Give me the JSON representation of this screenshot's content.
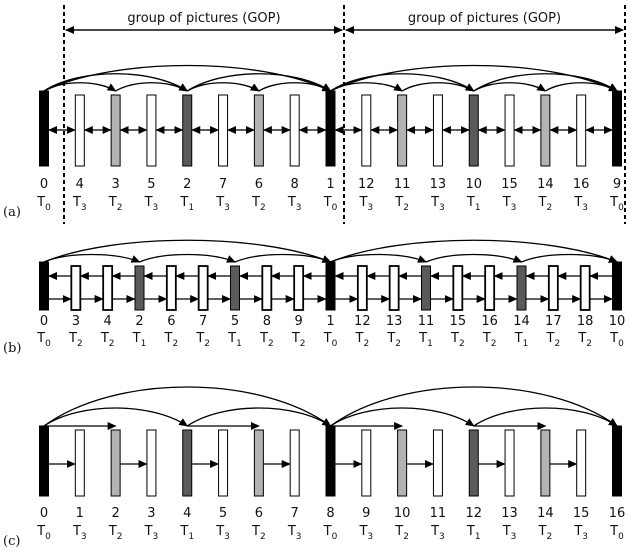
{
  "gop_label": "group of pictures (GOP)",
  "colors": {
    "key": "#000000",
    "T1": "#5a5a5a",
    "T2": "#b3b3b3",
    "T3": "#ffffff",
    "stroke": "#000000"
  },
  "panels": [
    {
      "label": "(a)",
      "show_gop": true,
      "frames": [
        {
          "num": "0",
          "level": "0",
          "kind": "key"
        },
        {
          "num": "4",
          "level": "3",
          "kind": "T3"
        },
        {
          "num": "3",
          "level": "2",
          "kind": "T2"
        },
        {
          "num": "5",
          "level": "3",
          "kind": "T3"
        },
        {
          "num": "2",
          "level": "1",
          "kind": "T1"
        },
        {
          "num": "7",
          "level": "3",
          "kind": "T3"
        },
        {
          "num": "6",
          "level": "2",
          "kind": "T2"
        },
        {
          "num": "8",
          "level": "3",
          "kind": "T3"
        },
        {
          "num": "1",
          "level": "0",
          "kind": "key"
        },
        {
          "num": "12",
          "level": "3",
          "kind": "T3"
        },
        {
          "num": "11",
          "level": "2",
          "kind": "T2"
        },
        {
          "num": "13",
          "level": "3",
          "kind": "T3"
        },
        {
          "num": "10",
          "level": "1",
          "kind": "T1"
        },
        {
          "num": "15",
          "level": "3",
          "kind": "T3"
        },
        {
          "num": "14",
          "level": "2",
          "kind": "T2"
        },
        {
          "num": "16",
          "level": "3",
          "kind": "T3"
        },
        {
          "num": "9",
          "level": "0",
          "kind": "key"
        }
      ]
    },
    {
      "label": "(b)",
      "show_gop": false,
      "frames": [
        {
          "num": "0",
          "level": "0",
          "kind": "key"
        },
        {
          "num": "3",
          "level": "2",
          "kind": "T2b"
        },
        {
          "num": "4",
          "level": "2",
          "kind": "T2b"
        },
        {
          "num": "2",
          "level": "1",
          "kind": "T1"
        },
        {
          "num": "6",
          "level": "2",
          "kind": "T2b"
        },
        {
          "num": "7",
          "level": "2",
          "kind": "T2b"
        },
        {
          "num": "5",
          "level": "1",
          "kind": "T1"
        },
        {
          "num": "8",
          "level": "2",
          "kind": "T2b"
        },
        {
          "num": "9",
          "level": "2",
          "kind": "T2b"
        },
        {
          "num": "1",
          "level": "0",
          "kind": "key"
        },
        {
          "num": "12",
          "level": "2",
          "kind": "T2b"
        },
        {
          "num": "13",
          "level": "2",
          "kind": "T2b"
        },
        {
          "num": "11",
          "level": "1",
          "kind": "T1"
        },
        {
          "num": "15",
          "level": "2",
          "kind": "T2b"
        },
        {
          "num": "16",
          "level": "2",
          "kind": "T2b"
        },
        {
          "num": "14",
          "level": "1",
          "kind": "T1"
        },
        {
          "num": "17",
          "level": "2",
          "kind": "T2b"
        },
        {
          "num": "18",
          "level": "2",
          "kind": "T2b"
        },
        {
          "num": "10",
          "level": "0",
          "kind": "key"
        }
      ]
    },
    {
      "label": "(c)",
      "show_gop": false,
      "frames": [
        {
          "num": "0",
          "level": "0",
          "kind": "key"
        },
        {
          "num": "1",
          "level": "3",
          "kind": "T3"
        },
        {
          "num": "2",
          "level": "2",
          "kind": "T2"
        },
        {
          "num": "3",
          "level": "3",
          "kind": "T3"
        },
        {
          "num": "4",
          "level": "1",
          "kind": "T1"
        },
        {
          "num": "5",
          "level": "3",
          "kind": "T3"
        },
        {
          "num": "6",
          "level": "2",
          "kind": "T2"
        },
        {
          "num": "7",
          "level": "3",
          "kind": "T3"
        },
        {
          "num": "8",
          "level": "0",
          "kind": "key"
        },
        {
          "num": "9",
          "level": "3",
          "kind": "T3"
        },
        {
          "num": "10",
          "level": "2",
          "kind": "T2"
        },
        {
          "num": "11",
          "level": "3",
          "kind": "T3"
        },
        {
          "num": "12",
          "level": "1",
          "kind": "T1"
        },
        {
          "num": "13",
          "level": "3",
          "kind": "T3"
        },
        {
          "num": "14",
          "level": "2",
          "kind": "T2"
        },
        {
          "num": "15",
          "level": "3",
          "kind": "T3"
        },
        {
          "num": "16",
          "level": "0",
          "kind": "key"
        }
      ]
    }
  ]
}
